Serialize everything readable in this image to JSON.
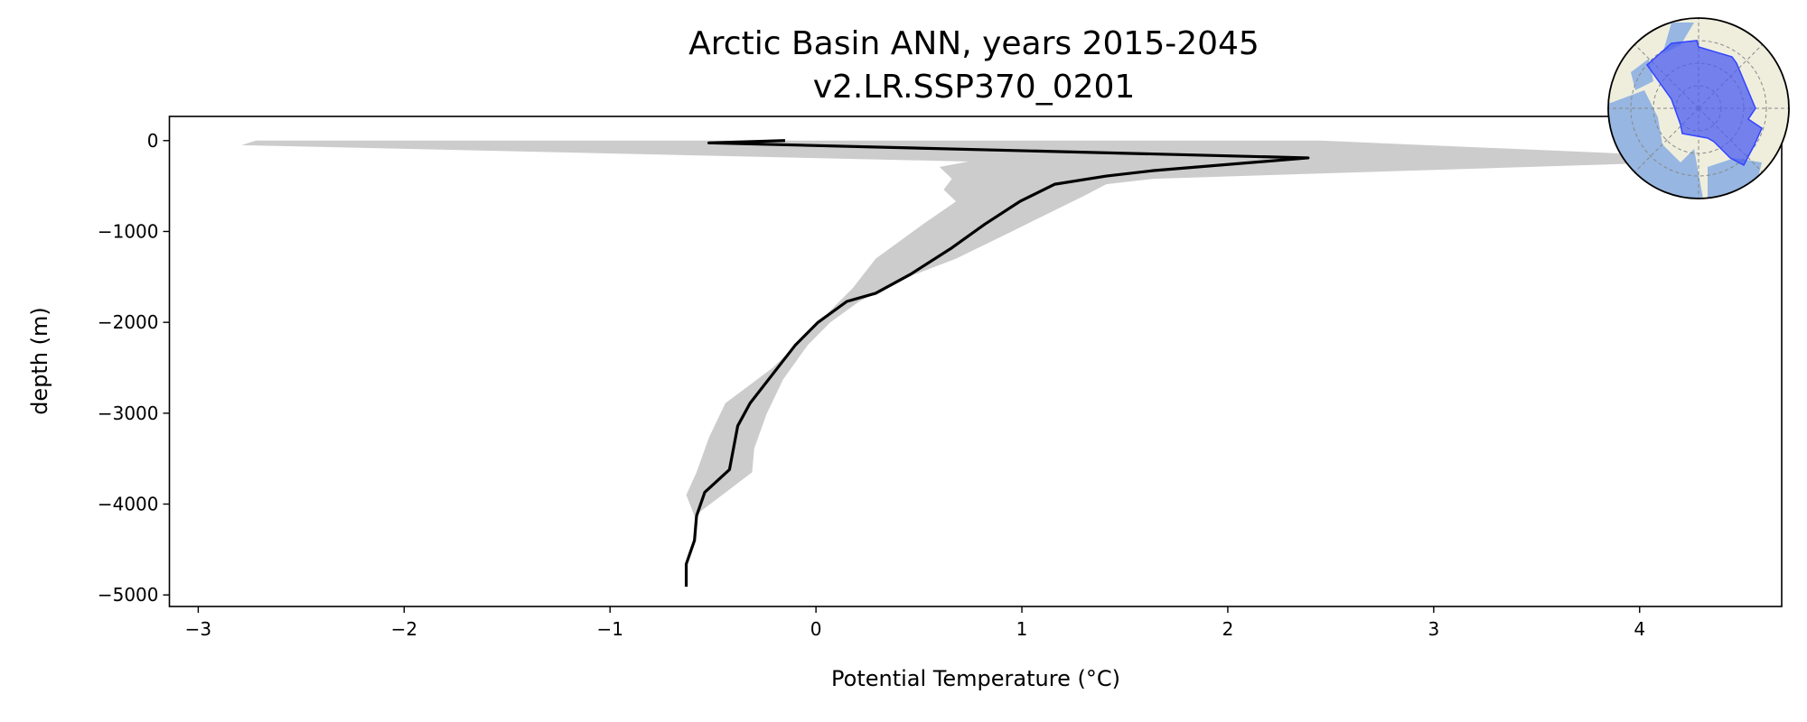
{
  "chart_data": {
    "type": "line",
    "title": "Arctic Basin ANN, years 2015-2045",
    "subtitle": "v2.LR.SSP370_0201",
    "xlabel": "Potential Temperature (°C)",
    "ylabel": "depth (m)",
    "xlim": [
      -3.14,
      4.69
    ],
    "ylim": [
      -5127,
      266
    ],
    "xticks": [
      -3,
      -2,
      -1,
      0,
      1,
      2,
      3,
      4
    ],
    "xtick_labels": [
      "−3",
      "−2",
      "−1",
      "0",
      "1",
      "2",
      "3",
      "4"
    ],
    "yticks": [
      0,
      -1000,
      -2000,
      -3000,
      -4000,
      -5000
    ],
    "ytick_labels": [
      "0",
      "−1000",
      "−2000",
      "−3000",
      "−4000",
      "−5000"
    ],
    "grid": false,
    "series": [
      {
        "kind": "line",
        "color": "#000000",
        "points": [
          [
            -0.15,
            0
          ],
          [
            -0.52,
            -25
          ],
          [
            2.39,
            -190
          ],
          [
            1.64,
            -330
          ],
          [
            1.41,
            -390
          ],
          [
            1.16,
            -480
          ],
          [
            0.99,
            -670
          ],
          [
            0.82,
            -920
          ],
          [
            0.66,
            -1180
          ],
          [
            0.46,
            -1470
          ],
          [
            0.29,
            -1680
          ],
          [
            0.15,
            -1770
          ],
          [
            0.01,
            -2000
          ],
          [
            -0.1,
            -2250
          ],
          [
            -0.21,
            -2570
          ],
          [
            -0.32,
            -2890
          ],
          [
            -0.38,
            -3140
          ],
          [
            -0.42,
            -3620
          ],
          [
            -0.54,
            -3870
          ],
          [
            -0.58,
            -4130
          ],
          [
            -0.59,
            -4400
          ],
          [
            -0.63,
            -4660
          ],
          [
            -0.63,
            -4910
          ]
        ]
      },
      {
        "kind": "band",
        "color": "#cccccc",
        "lower": [
          [
            -2.72,
            0
          ],
          [
            -2.79,
            -50
          ],
          [
            0.74,
            -230
          ],
          [
            0.6,
            -290
          ],
          [
            0.66,
            -420
          ],
          [
            0.62,
            -540
          ],
          [
            0.68,
            -670
          ],
          [
            0.52,
            -920
          ],
          [
            0.29,
            -1300
          ],
          [
            0.18,
            -1620
          ],
          [
            0.07,
            -1870
          ],
          [
            -0.04,
            -2130
          ],
          [
            -0.21,
            -2500
          ],
          [
            -0.44,
            -2890
          ],
          [
            -0.52,
            -3270
          ],
          [
            -0.58,
            -3650
          ],
          [
            -0.63,
            -3900
          ],
          [
            -0.59,
            -4130
          ]
        ],
        "upper": [
          [
            2.45,
            0
          ],
          [
            4.3,
            -180
          ],
          [
            4.3,
            -230
          ],
          [
            1.64,
            -420
          ],
          [
            1.41,
            -480
          ],
          [
            1.3,
            -610
          ],
          [
            0.96,
            -990
          ],
          [
            0.68,
            -1300
          ],
          [
            0.46,
            -1490
          ],
          [
            0.21,
            -1770
          ],
          [
            0.07,
            -2000
          ],
          [
            -0.04,
            -2250
          ],
          [
            -0.16,
            -2630
          ],
          [
            -0.24,
            -3010
          ],
          [
            -0.3,
            -3390
          ],
          [
            -0.31,
            -3650
          ],
          [
            -0.49,
            -3960
          ],
          [
            -0.59,
            -4130
          ]
        ]
      }
    ],
    "inset": {
      "type": "map",
      "projection": "north-polar-stereographic",
      "land_color": "#efeedd",
      "ocean_color": "#97b6e1",
      "region_color": "#4b5cf0",
      "grid": "dashed"
    }
  }
}
